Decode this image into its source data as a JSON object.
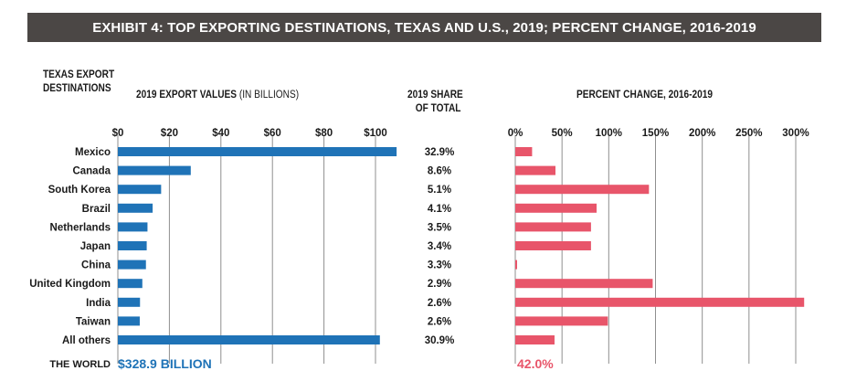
{
  "banner": {
    "title": "EXHIBIT 4: TOP EXPORTING DESTINATIONS, TEXAS AND U.S., 2019; PERCENT CHANGE, 2016-2019"
  },
  "headers": {
    "destinations_line1": "TEXAS EXPORT",
    "destinations_line2": "DESTINATIONS",
    "export_values_bold": "2019 EXPORT VALUES",
    "export_values_light": "(IN BILLIONS)",
    "share_line1": "2019 SHARE",
    "share_line2": "OF TOTAL",
    "percent_change": "PERCENT CHANGE, 2016-2019"
  },
  "colors": {
    "blue": "#1f73b7",
    "red": "#e8556a",
    "banner": "#4b4745"
  },
  "chart_data": [
    {
      "type": "bar",
      "orientation": "horizontal",
      "title": "2019 EXPORT VALUES (IN BILLIONS)",
      "categories": [
        "Mexico",
        "Canada",
        "South Korea",
        "Brazil",
        "Netherlands",
        "Japan",
        "China",
        "United Kingdom",
        "India",
        "Taiwan",
        "All others"
      ],
      "values": [
        108.2,
        28.3,
        16.8,
        13.5,
        11.5,
        11.2,
        10.9,
        9.5,
        8.6,
        8.5,
        101.7
      ],
      "xlim": [
        0,
        110
      ],
      "tick_values": [
        0,
        20,
        40,
        60,
        80,
        100
      ],
      "tick_labels": [
        "$0",
        "$20",
        "$40",
        "$60",
        "$80",
        "$100"
      ],
      "grid": true,
      "color": "#1f73b7",
      "total_label": "THE WORLD",
      "total_value": "$328.9 BILLION"
    },
    {
      "type": "table",
      "title": "2019 SHARE OF TOTAL",
      "values": [
        "32.9%",
        "8.6%",
        "5.1%",
        "4.1%",
        "3.5%",
        "3.4%",
        "3.3%",
        "2.9%",
        "2.6%",
        "2.6%",
        "30.9%"
      ]
    },
    {
      "type": "bar",
      "orientation": "horizontal",
      "title": "PERCENT CHANGE, 2016-2019",
      "categories": [
        "Mexico",
        "Canada",
        "South Korea",
        "Brazil",
        "Netherlands",
        "Japan",
        "China",
        "United Kingdom",
        "India",
        "Taiwan",
        "All others"
      ],
      "values": [
        18,
        43,
        143,
        87,
        81,
        81,
        1,
        147,
        309,
        99,
        42
      ],
      "xlim": [
        0,
        310
      ],
      "tick_values": [
        0,
        50,
        100,
        150,
        200,
        250,
        300
      ],
      "tick_labels": [
        "0%",
        "50%",
        "100%",
        "150%",
        "200%",
        "250%",
        "300%"
      ],
      "grid": true,
      "color": "#e8556a",
      "total_value": "42.0%"
    }
  ]
}
